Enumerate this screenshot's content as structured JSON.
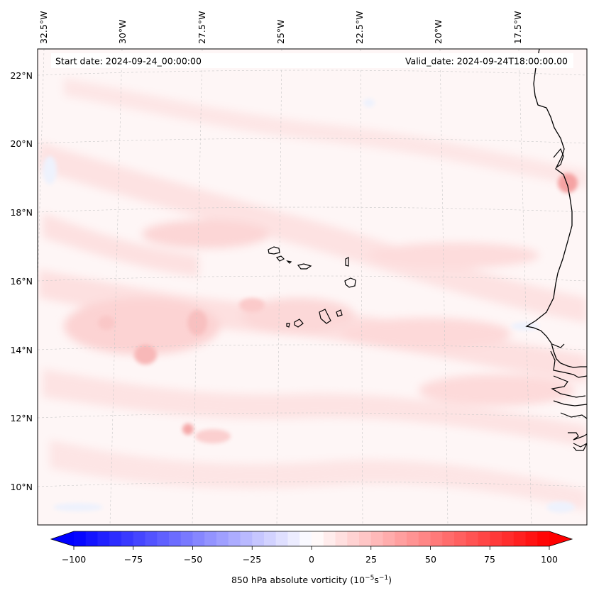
{
  "map": {
    "header": {
      "start_date": "Start date: 2024-09-24_00:00:00",
      "valid_date": "Valid_date: 2024-09-24T18:00:00.00"
    },
    "lon_ticks": [
      "32.5°W",
      "30°W",
      "27.5°W",
      "25°W",
      "22.5°W",
      "20°W",
      "17.5°W"
    ],
    "lat_ticks": [
      "22°N",
      "20°N",
      "18°N",
      "16°N",
      "14°N",
      "12°N",
      "10°N"
    ],
    "field_colors": {
      "background": "#fef6f6",
      "light_positive": "#fde4e4",
      "medium_positive": "#fbd0d0",
      "strong_positive": "#f7b2b2",
      "light_negative": "#eef2fd",
      "coastline": "#000000"
    }
  },
  "colorbar": {
    "tick_labels": [
      "−100",
      "−75",
      "−50",
      "−25",
      "0",
      "25",
      "50",
      "75",
      "100"
    ],
    "label": "850 hPa absolute vorticity (10",
    "label_exp1": "−5",
    "label_mid": "s",
    "label_exp2": "−1",
    "label_end": ")",
    "min_color": "#0000ff",
    "mid_color": "#ffffff",
    "max_color": "#ff0000"
  }
}
